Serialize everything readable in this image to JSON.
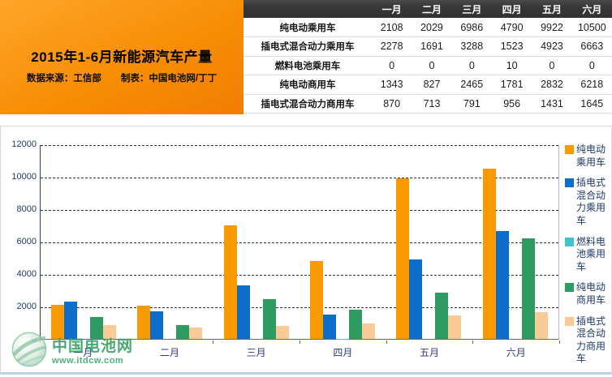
{
  "header": {
    "title": "2015年1-6月新能源汽车产量",
    "source": "数据来源：工信部",
    "credit": "制表：中国电池网/丁丁"
  },
  "table": {
    "columns": [
      "一月",
      "二月",
      "三月",
      "四月",
      "五月",
      "六月"
    ],
    "rows": [
      {
        "label": "纯电动乘用车",
        "values": [
          2108,
          2029,
          6986,
          4790,
          9922,
          10500
        ]
      },
      {
        "label": "插电式混合动力乘用车",
        "values": [
          2278,
          1691,
          3288,
          1523,
          4923,
          6663
        ]
      },
      {
        "label": "燃料电池乘用车",
        "values": [
          0,
          0,
          0,
          10,
          0,
          0
        ]
      },
      {
        "label": "纯电动商用车",
        "values": [
          1343,
          827,
          2465,
          1781,
          2832,
          6218
        ]
      },
      {
        "label": "插电式混合动力商用车",
        "values": [
          870,
          713,
          791,
          956,
          1431,
          1645
        ]
      }
    ]
  },
  "chart_data": {
    "type": "bar",
    "title": "",
    "categories": [
      "一月",
      "二月",
      "三月",
      "四月",
      "五月",
      "六月"
    ],
    "series": [
      {
        "name": "纯电动乘用车",
        "color": "#F99B00",
        "values": [
          2108,
          2029,
          6986,
          4790,
          9922,
          10500
        ]
      },
      {
        "name": "插电式混合动力乘用车",
        "color": "#0D6EC9",
        "values": [
          2278,
          1691,
          3288,
          1523,
          4923,
          6663
        ]
      },
      {
        "name": "燃料电池乘用车",
        "color": "#3FC5CC",
        "values": [
          0,
          0,
          0,
          10,
          0,
          0
        ]
      },
      {
        "name": "纯电动商用车",
        "color": "#2E9C60",
        "values": [
          1343,
          827,
          2465,
          1781,
          2832,
          6218
        ]
      },
      {
        "name": "插电式混合动力商用车",
        "color": "#FBCB97",
        "values": [
          870,
          713,
          791,
          956,
          1431,
          1645
        ]
      }
    ],
    "ylim": [
      0,
      12000
    ],
    "yticks": [
      0,
      2000,
      4000,
      6000,
      8000,
      10000,
      12000
    ],
    "xlabel": "",
    "ylabel": "",
    "grid": "dashed-horizontal",
    "legend_position": "right"
  },
  "watermark": {
    "site_name": "中国电池网",
    "site_url": "www.itdcw.com"
  }
}
